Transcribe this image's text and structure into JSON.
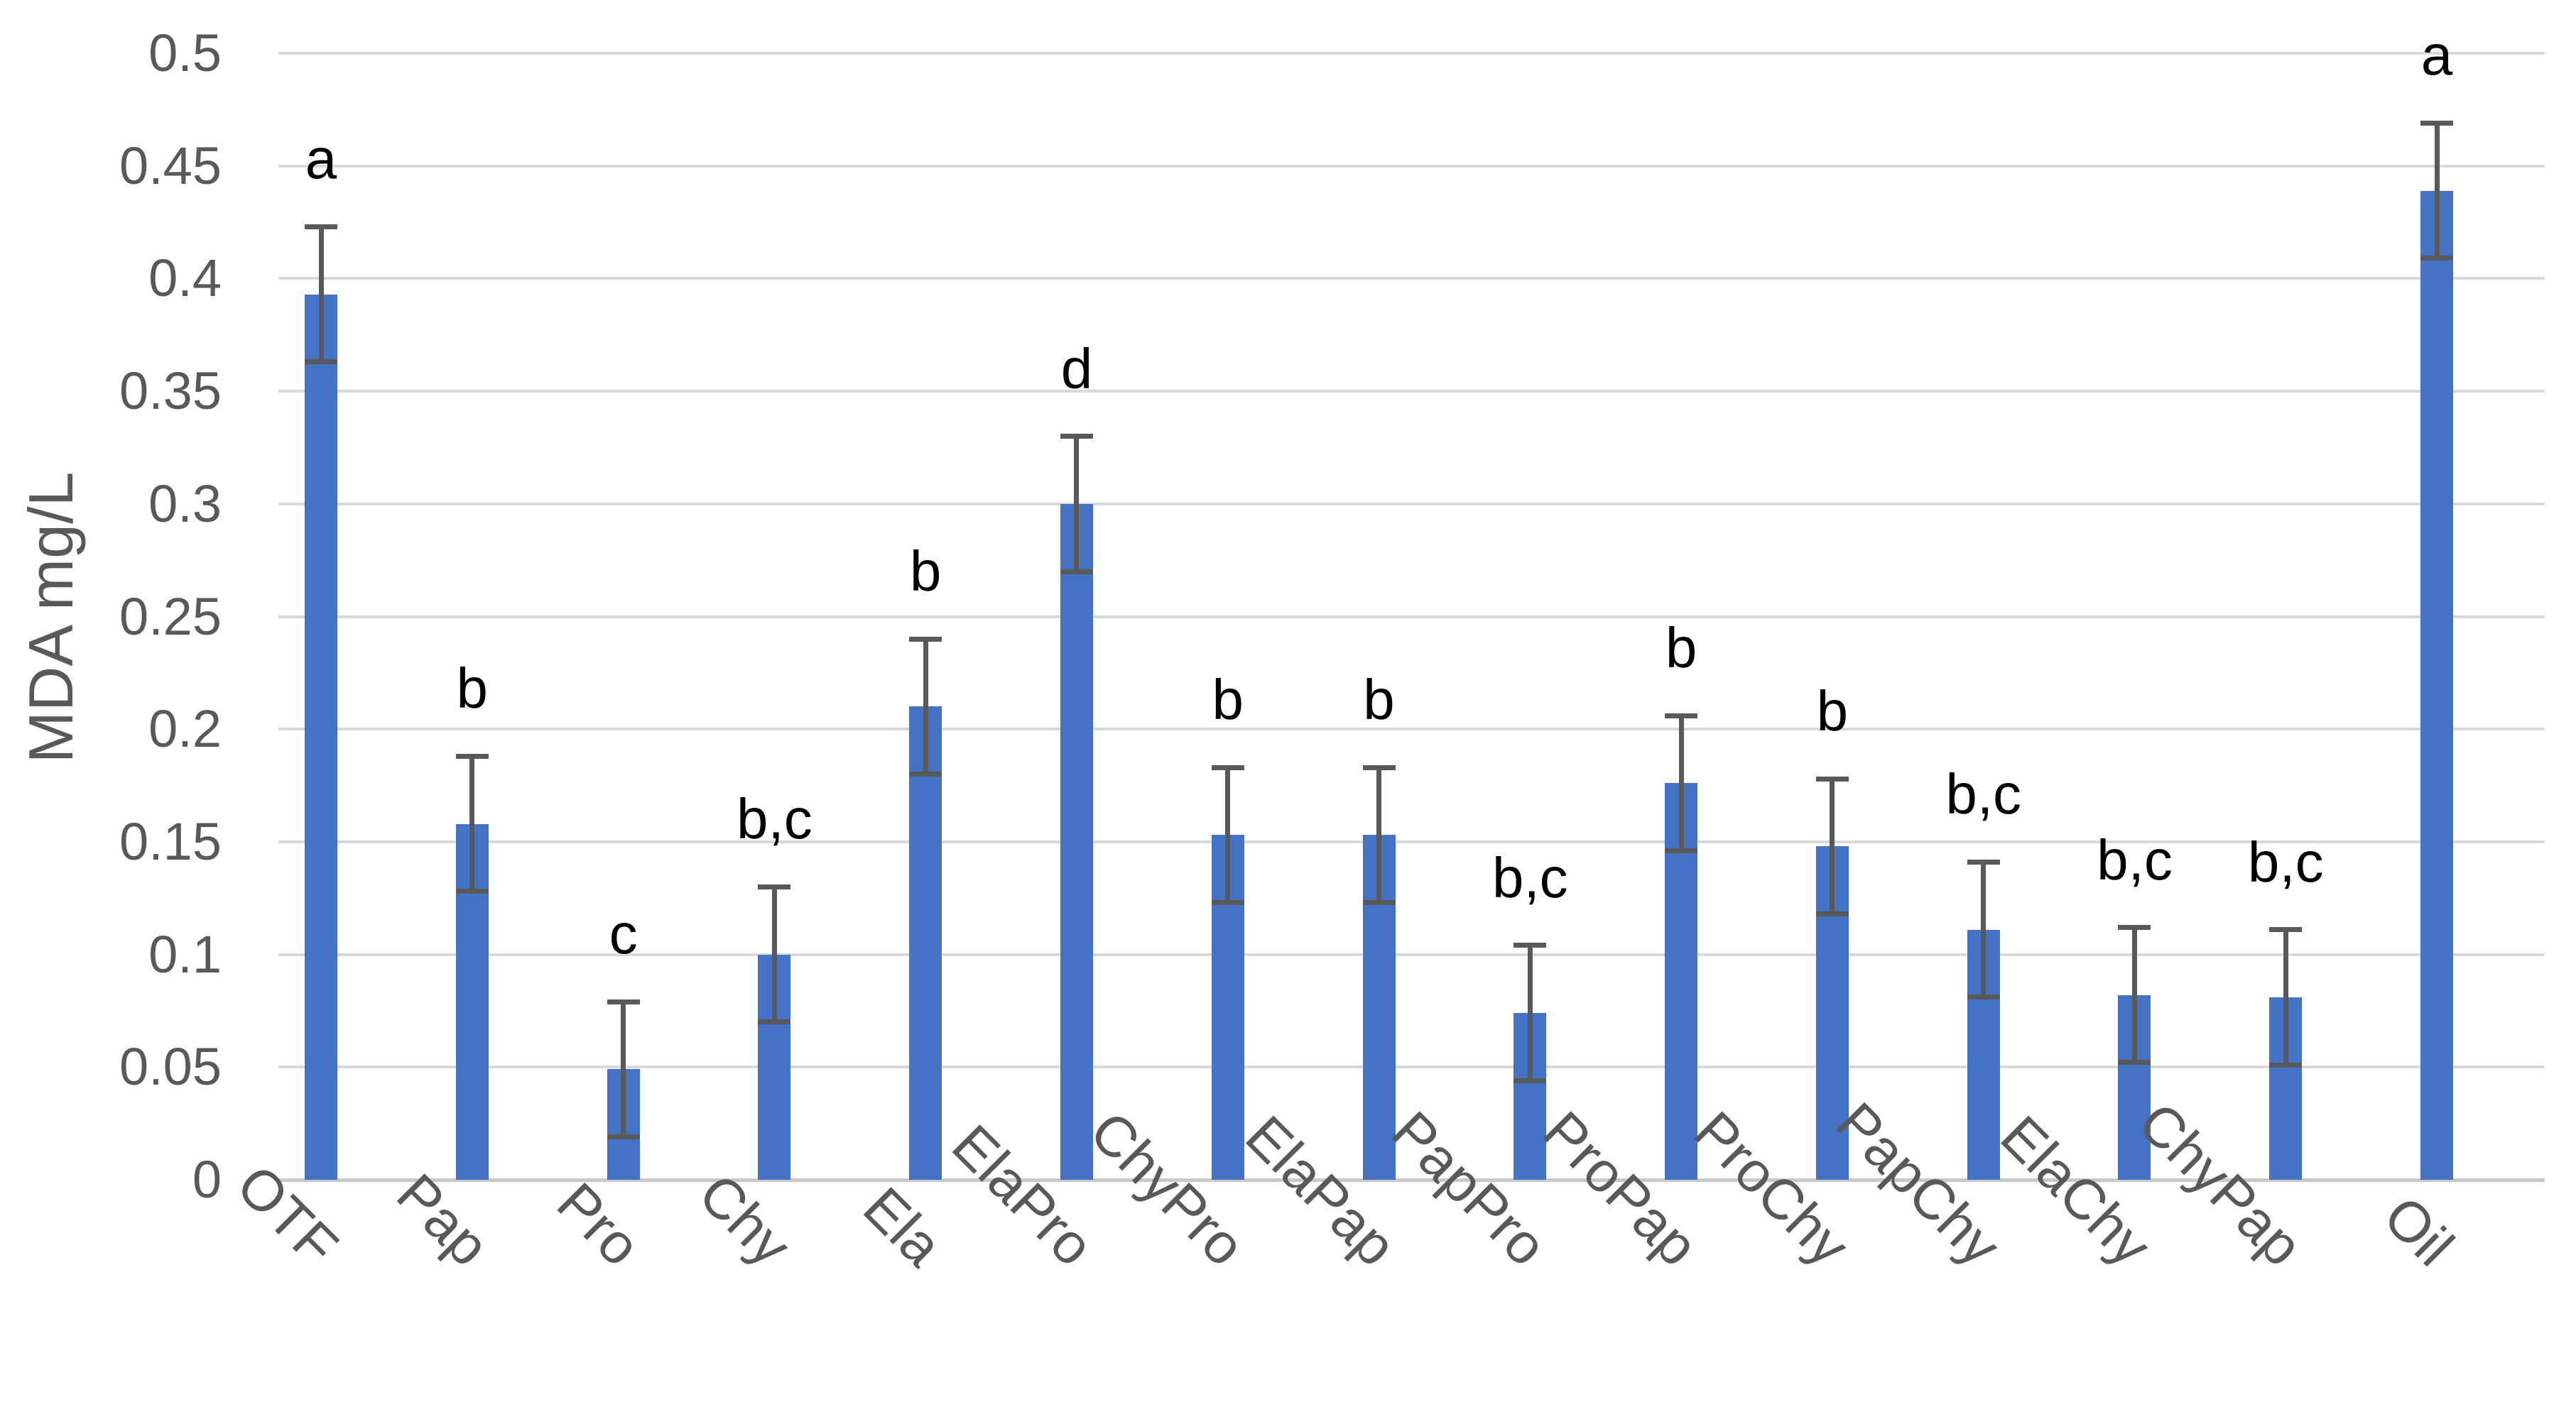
{
  "chart_data": {
    "type": "bar",
    "title": "",
    "ylabel": "MDA mg/L",
    "xlabel": "",
    "ylim": [
      0,
      0.5
    ],
    "ytick_step": 0.05,
    "yticks": [
      "0",
      "0.05",
      "0.1",
      "0.15",
      "0.2",
      "0.25",
      "0.3",
      "0.35",
      "0.4",
      "0.45",
      "0.5"
    ],
    "grid": "horizontal gridlines on",
    "legend": "none",
    "bar_color": "#4472C4",
    "error_bar_color": "#595959",
    "gridline_color": "#D9D9D9",
    "axis_line_color": "#C9C9C9",
    "tick_label_color": "#595959",
    "significance_label_color": "#000000",
    "categories": [
      "OTF",
      "Pap",
      "Pro",
      "Chy",
      "Ela",
      "ElaPro",
      "ChyPro",
      "ElaPap",
      "PapPro",
      "ProPap",
      "ProChy",
      "PapChy",
      "ElaChy",
      "ChyPap",
      "Oil"
    ],
    "series": [
      {
        "name": "MDA",
        "values": [
          0.393,
          0.158,
          0.049,
          0.1,
          0.21,
          0.3,
          0.153,
          0.153,
          0.074,
          0.176,
          0.148,
          0.111,
          0.082,
          0.081,
          0.439
        ],
        "error_bars": [
          0.03,
          0.03,
          0.03,
          0.03,
          0.03,
          0.03,
          0.03,
          0.03,
          0.03,
          0.03,
          0.03,
          0.03,
          0.03,
          0.03,
          0.03
        ],
        "significance_letters": [
          "a",
          "b",
          "c",
          "b,c",
          "b",
          "d",
          "b",
          "b",
          "b,c",
          "b",
          "b",
          "b,c",
          "b,c",
          "b,c",
          "a"
        ]
      }
    ]
  }
}
